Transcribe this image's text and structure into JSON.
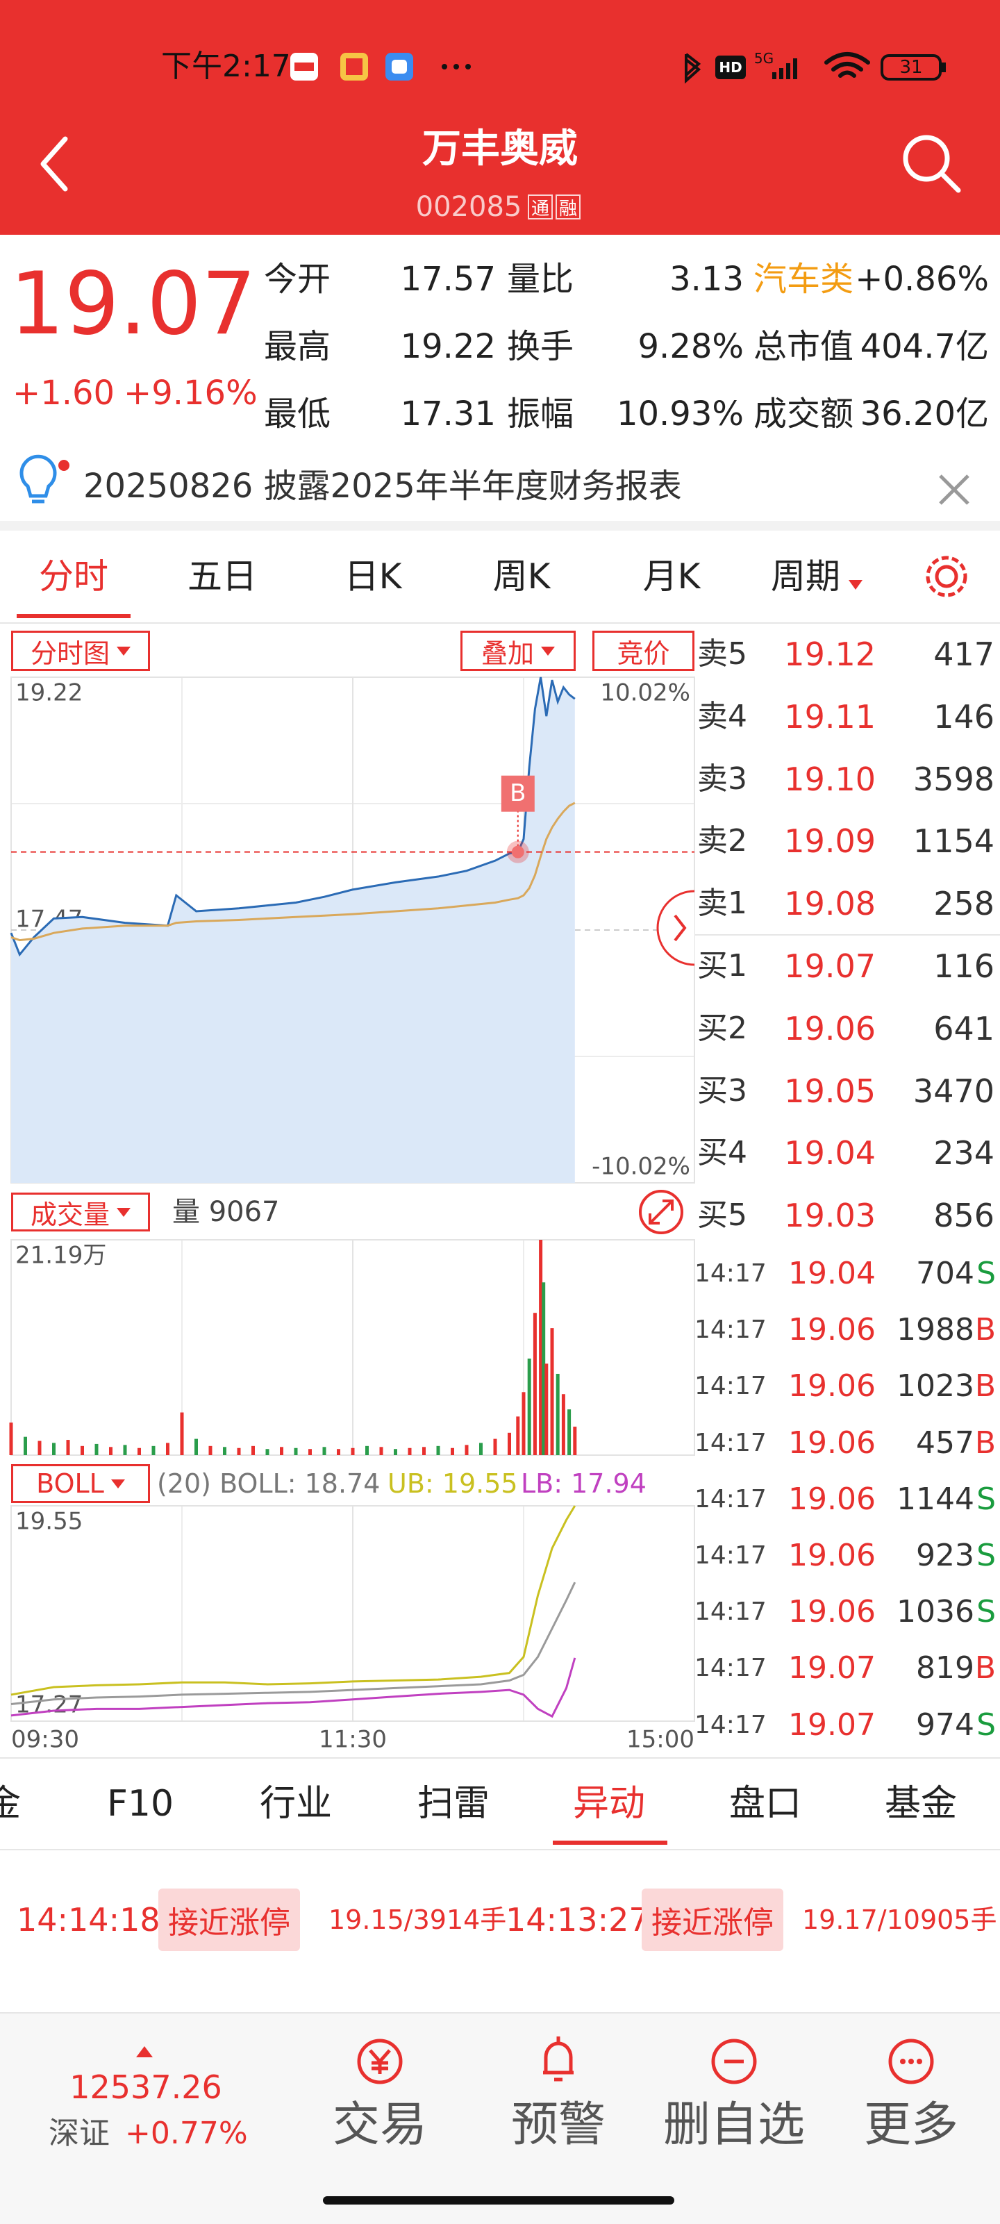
{
  "status_bar": {
    "time": "下午2:17",
    "hd": "HD",
    "network": "5G",
    "battery": "31"
  },
  "header": {
    "title": "万丰奥威",
    "code": "002085",
    "badges": [
      "通",
      "融"
    ]
  },
  "quote": {
    "price": "19.07",
    "change": "+1.60",
    "change_pct": "+9.16%",
    "stats": [
      [
        "今开",
        "17.57",
        "量比",
        "3.13",
        "汽车类",
        "+0.86%"
      ],
      [
        "最高",
        "19.22",
        "换手",
        "9.28%",
        "总市值",
        "404.7亿"
      ],
      [
        "最低",
        "17.31",
        "振幅",
        "10.93%",
        "成交额",
        "36.20亿"
      ]
    ]
  },
  "notice": "20250826 披露2025年半年度财务报表",
  "tabs": {
    "items": [
      "分时",
      "五日",
      "日K",
      "周K",
      "月K",
      "周期"
    ],
    "active": 0
  },
  "chart_toolbar": {
    "mode": "分时图",
    "overlay": "叠加",
    "auction": "竞价"
  },
  "volume_header": {
    "label": "成交量",
    "value": "量 9067"
  },
  "boll_header": {
    "label": "BOLL",
    "params": "(20) BOLL: 18.74",
    "ub": "UB: 19.55",
    "lb": "LB: 17.94"
  },
  "chart_data": [
    {
      "type": "line",
      "xlim": [
        0,
        240
      ],
      "ylim": [
        15.72,
        19.22
      ],
      "yticks": [
        19.22,
        17.47,
        15.72
      ],
      "y2lim": [
        -10.02,
        10.02
      ],
      "y2ticks": [
        {
          "value": 10.02,
          "label": "10.02%"
        },
        {
          "value": -10.02,
          "label": "-10.02%"
        }
      ],
      "x": [
        0,
        3,
        8,
        15,
        25,
        40,
        55,
        58,
        65,
        80,
        100,
        110,
        120,
        135,
        150,
        160,
        170,
        175,
        178,
        180,
        182,
        184,
        186,
        188,
        190,
        192,
        194,
        196,
        198
      ],
      "series": [
        {
          "color": "#2b6bb5",
          "area_color": "#dbe8f8",
          "values": [
            17.45,
            17.3,
            17.42,
            17.55,
            17.56,
            17.52,
            17.5,
            17.71,
            17.6,
            17.62,
            17.66,
            17.7,
            17.75,
            17.8,
            17.84,
            17.88,
            17.95,
            18.0,
            18.01,
            18.1,
            18.6,
            19.0,
            19.22,
            18.95,
            19.2,
            19.05,
            19.15,
            19.1,
            19.07
          ]
        },
        {
          "color": "#d9a85b",
          "values": [
            17.42,
            17.4,
            17.41,
            17.45,
            17.48,
            17.5,
            17.5,
            17.52,
            17.53,
            17.54,
            17.56,
            17.57,
            17.58,
            17.6,
            17.62,
            17.64,
            17.66,
            17.68,
            17.69,
            17.71,
            17.76,
            17.85,
            17.98,
            18.1,
            18.18,
            18.24,
            18.29,
            18.33,
            18.35
          ]
        }
      ],
      "marker": {
        "label": "B",
        "x": 178,
        "value": 18.01
      }
    },
    {
      "type": "bar",
      "xlim": [
        0,
        240
      ],
      "ylim": [
        0,
        211900
      ],
      "yticks": [
        {
          "value": 211900,
          "label": "21.19万"
        }
      ],
      "x": [
        0,
        5,
        10,
        15,
        20,
        25,
        30,
        35,
        40,
        45,
        50,
        55,
        60,
        65,
        70,
        75,
        80,
        85,
        90,
        95,
        100,
        105,
        110,
        115,
        120,
        125,
        130,
        135,
        140,
        145,
        150,
        155,
        160,
        165,
        170,
        175,
        178,
        180,
        182,
        184,
        186,
        187,
        188,
        190,
        192,
        194,
        196,
        198
      ],
      "values": [
        32000,
        18000,
        14000,
        12000,
        15000,
        9000,
        11000,
        8000,
        10000,
        7000,
        9000,
        12000,
        42000,
        16000,
        9000,
        8000,
        7000,
        9000,
        6000,
        8000,
        7000,
        6000,
        8000,
        6000,
        7000,
        9000,
        8000,
        6000,
        7000,
        8000,
        9000,
        7000,
        10000,
        12000,
        16000,
        22000,
        38000,
        62000,
        95000,
        140000,
        211900,
        170000,
        90000,
        125000,
        80000,
        60000,
        45000,
        28000
      ],
      "colors": [
        "#e8302e",
        "#2a9d4b",
        "#e8302e",
        "#2a9d4b",
        "#e8302e",
        "#e8302e",
        "#2a9d4b",
        "#e8302e",
        "#2a9d4b",
        "#e8302e",
        "#2a9d4b",
        "#e8302e",
        "#e8302e",
        "#2a9d4b",
        "#e8302e",
        "#2a9d4b",
        "#e8302e",
        "#e8302e",
        "#2a9d4b",
        "#e8302e",
        "#2a9d4b",
        "#e8302e",
        "#2a9d4b",
        "#e8302e",
        "#e8302e",
        "#2a9d4b",
        "#e8302e",
        "#2a9d4b",
        "#e8302e",
        "#e8302e",
        "#2a9d4b",
        "#e8302e",
        "#e8302e",
        "#2a9d4b",
        "#e8302e",
        "#e8302e",
        "#e8302e",
        "#e8302e",
        "#2a9d4b",
        "#e8302e",
        "#e8302e",
        "#2a9d4b",
        "#e8302e",
        "#e8302e",
        "#2a9d4b",
        "#e8302e",
        "#2a9d4b",
        "#e8302e"
      ]
    },
    {
      "type": "line",
      "xlim": [
        0,
        240
      ],
      "ylim": [
        17.27,
        19.55
      ],
      "yticks": [
        19.55,
        17.27
      ],
      "xticks": [
        {
          "value": 0,
          "label": "09:30"
        },
        {
          "value": 120,
          "label": "11:30"
        },
        {
          "value": 240,
          "label": "15:00"
        }
      ],
      "x": [
        0,
        15,
        30,
        45,
        60,
        75,
        90,
        105,
        120,
        135,
        150,
        165,
        175,
        180,
        185,
        190,
        195,
        198
      ],
      "series": [
        {
          "color": "#c9c020",
          "values": [
            17.55,
            17.63,
            17.65,
            17.66,
            17.68,
            17.68,
            17.66,
            17.67,
            17.69,
            17.7,
            17.71,
            17.74,
            17.78,
            17.95,
            18.6,
            19.1,
            19.4,
            19.55
          ]
        },
        {
          "color": "#9a9a9a",
          "values": [
            17.45,
            17.5,
            17.52,
            17.53,
            17.55,
            17.56,
            17.57,
            17.58,
            17.6,
            17.62,
            17.64,
            17.66,
            17.7,
            17.76,
            17.95,
            18.25,
            18.55,
            18.74
          ]
        },
        {
          "color": "#c040c0",
          "values": [
            17.33,
            17.38,
            17.4,
            17.4,
            17.42,
            17.44,
            17.46,
            17.47,
            17.5,
            17.53,
            17.56,
            17.58,
            17.6,
            17.55,
            17.4,
            17.32,
            17.62,
            17.94
          ]
        }
      ]
    }
  ],
  "order_book": {
    "asks": [
      [
        "卖5",
        "19.12",
        "417"
      ],
      [
        "卖4",
        "19.11",
        "146"
      ],
      [
        "卖3",
        "19.10",
        "3598"
      ],
      [
        "卖2",
        "19.09",
        "1154"
      ],
      [
        "卖1",
        "19.08",
        "258"
      ]
    ],
    "bids": [
      [
        "买1",
        "19.07",
        "116"
      ],
      [
        "买2",
        "19.06",
        "641"
      ],
      [
        "买3",
        "19.05",
        "3470"
      ],
      [
        "买4",
        "19.04",
        "234"
      ],
      [
        "买5",
        "19.03",
        "856"
      ]
    ]
  },
  "trades": [
    [
      "14:17",
      "19.04",
      "704",
      "S"
    ],
    [
      "14:17",
      "19.06",
      "1988",
      "B"
    ],
    [
      "14:17",
      "19.06",
      "1023",
      "B"
    ],
    [
      "14:17",
      "19.06",
      "457",
      "B"
    ],
    [
      "14:17",
      "19.06",
      "1144",
      "S"
    ],
    [
      "14:17",
      "19.06",
      "923",
      "S"
    ],
    [
      "14:17",
      "19.06",
      "1036",
      "S"
    ],
    [
      "14:17",
      "19.07",
      "819",
      "B"
    ],
    [
      "14:17",
      "19.07",
      "974",
      "S"
    ]
  ],
  "bottom_tabs": {
    "items": [
      "金",
      "F10",
      "行业",
      "扫雷",
      "异动",
      "盘口",
      "基金"
    ],
    "active": 4
  },
  "events": [
    [
      "14:14:18",
      "接近涨停",
      "19.15/3914手"
    ],
    [
      "14:13:27",
      "接近涨停",
      "19.17/10905手"
    ]
  ],
  "footer": {
    "index_value": "12537.26",
    "index_name": "深证",
    "index_change": "+0.77%",
    "actions": [
      "交易",
      "预警",
      "删自选",
      "更多"
    ]
  }
}
